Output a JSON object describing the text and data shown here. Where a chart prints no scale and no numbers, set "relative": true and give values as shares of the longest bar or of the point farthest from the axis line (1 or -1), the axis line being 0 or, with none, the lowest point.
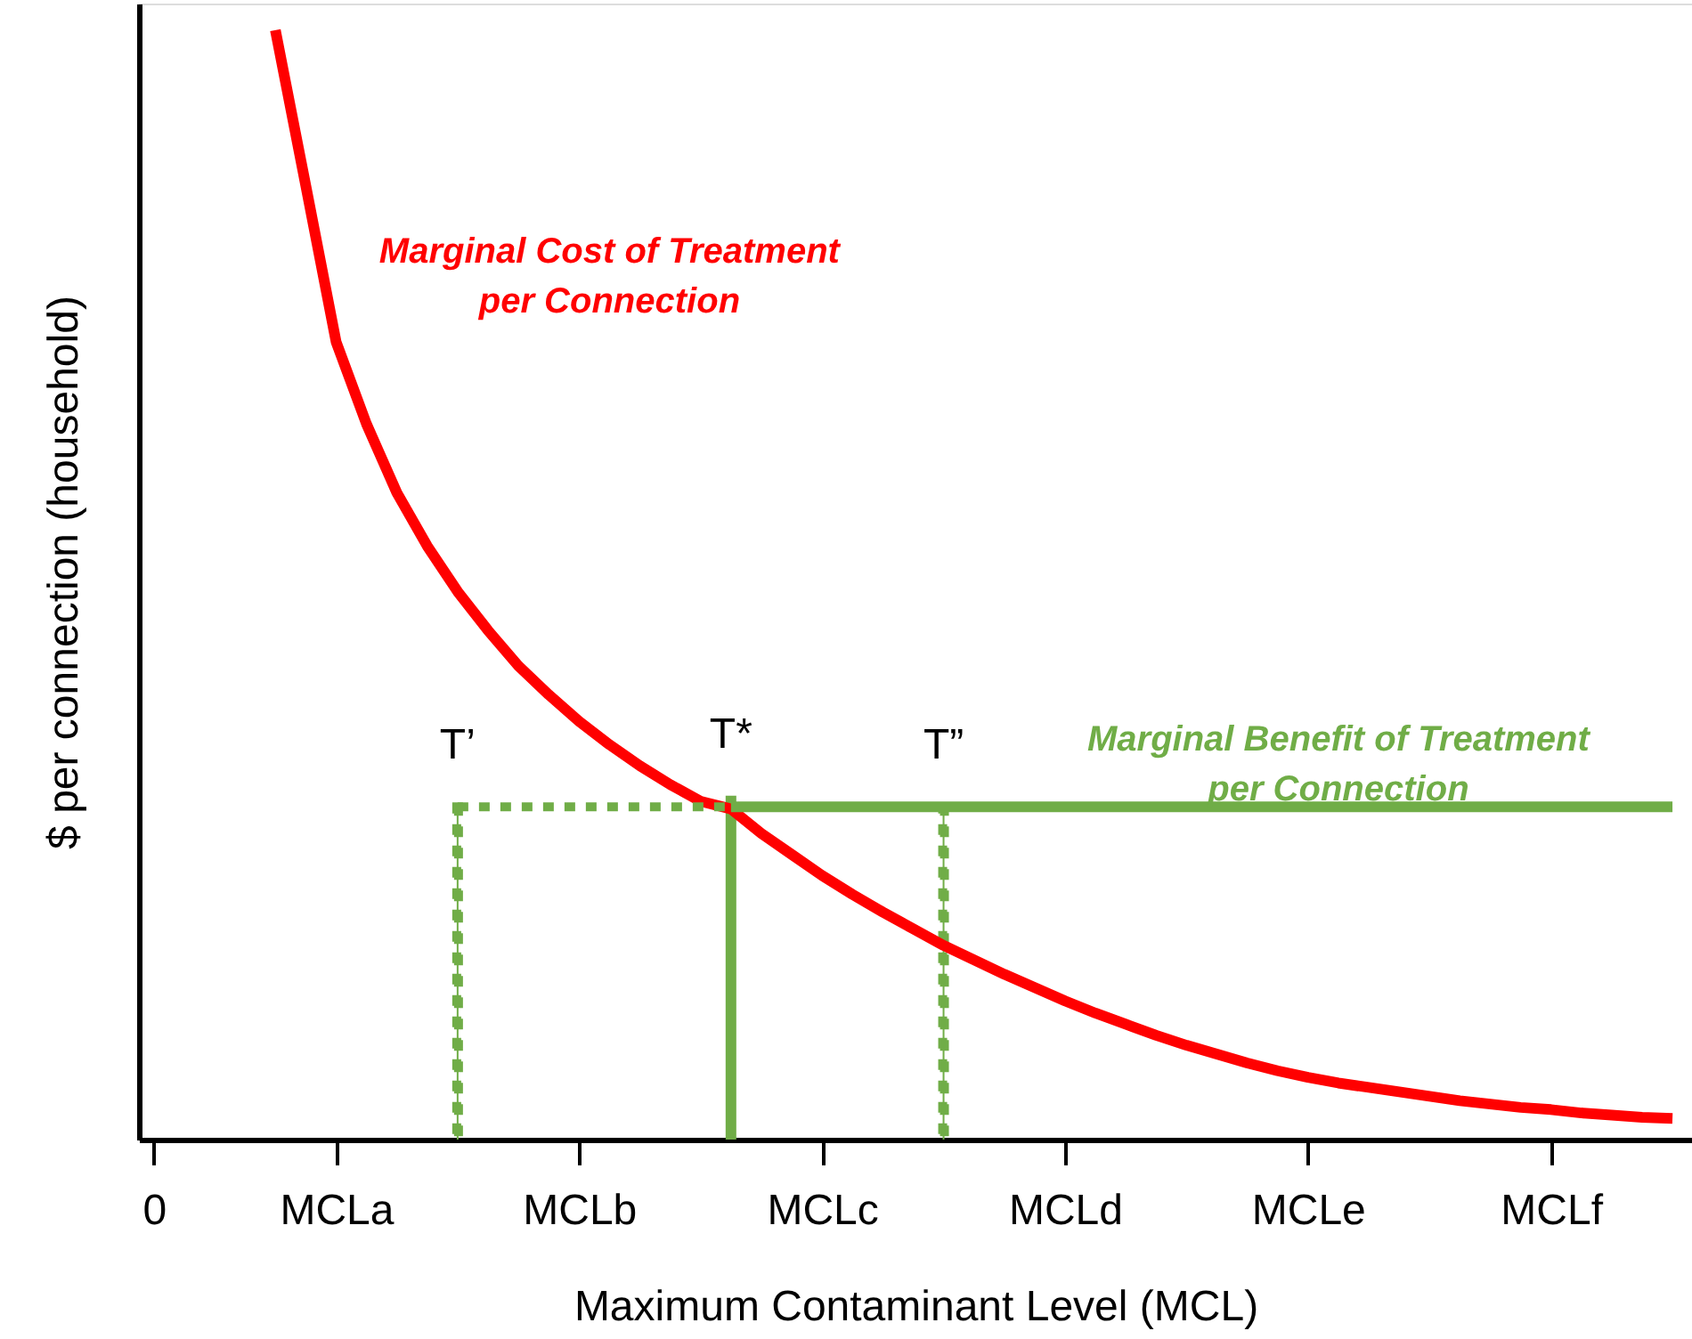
{
  "chart_data": {
    "type": "line",
    "relative": true,
    "xlabel": "Maximum Contaminant Level (MCL)",
    "ylabel": "$ per connection (household)",
    "categories": [
      "0",
      null,
      null,
      null,
      null,
      null,
      "MCLa",
      null,
      null,
      null,
      null,
      null,
      null,
      null,
      "MCLb",
      null,
      null,
      null,
      null,
      null,
      null,
      null,
      "MCLc",
      null,
      null,
      null,
      null,
      null,
      null,
      null,
      "MCLd",
      null,
      null,
      null,
      null,
      null,
      null,
      null,
      "MCLe",
      null,
      null,
      null,
      null,
      null,
      null,
      null,
      "MCLf",
      null,
      null,
      null,
      null
    ],
    "grid": false,
    "series": [
      {
        "name": "Marginal Cost of Treatment per Connection",
        "color": "#ff0000",
        "line_style": "solid",
        "values": [
          null,
          null,
          null,
          null,
          1.0,
          0.86,
          0.719,
          0.645,
          0.583,
          0.535,
          0.494,
          0.459,
          0.427,
          0.401,
          0.377,
          0.356,
          0.337,
          0.32,
          0.305,
          0.298,
          0.276,
          0.257,
          0.238,
          0.221,
          0.205,
          0.19,
          0.175,
          0.162,
          0.149,
          0.137,
          0.125,
          0.114,
          0.104,
          0.094,
          0.085,
          0.077,
          0.069,
          0.062,
          0.056,
          0.051,
          0.047,
          0.043,
          0.039,
          0.035,
          0.032,
          0.029,
          0.027,
          0.024,
          0.022,
          0.02,
          0.019
        ]
      },
      {
        "name": "Marginal Benefit of Treatment per Connection",
        "color": "#70ad47",
        "line_style": "solid",
        "values": [
          null,
          null,
          null,
          null,
          null,
          null,
          null,
          null,
          null,
          null,
          null,
          null,
          null,
          null,
          null,
          null,
          null,
          null,
          null,
          0.3,
          0.3,
          0.3,
          0.3,
          0.3,
          0.3,
          0.3,
          0.3,
          0.3,
          0.3,
          0.3,
          0.3,
          0.3,
          0.3,
          0.3,
          0.3,
          0.3,
          0.3,
          0.3,
          0.3,
          0.3,
          0.3,
          0.3,
          0.3,
          0.3,
          0.3,
          0.3,
          0.3,
          0.3,
          0.3,
          0.3,
          0.3
        ]
      },
      {
        "color": "#70ad47",
        "line_style": "dotted",
        "values": [
          null,
          null,
          null,
          null,
          null,
          null,
          null,
          null,
          null,
          null,
          0.3,
          0.3,
          0.3,
          0.3,
          0.3,
          0.3,
          0.3,
          0.3,
          0.3,
          0.3,
          null,
          null,
          null,
          null,
          null,
          null,
          null,
          null,
          null,
          null,
          null,
          null,
          null,
          null,
          null,
          null,
          null,
          null,
          null,
          null,
          null,
          null,
          null,
          null,
          null,
          null,
          null,
          null,
          null,
          null,
          null
        ]
      },
      {
        "type": "bar",
        "color": "#70ad47",
        "line_style": "dotted",
        "values": [
          null,
          null,
          null,
          null,
          null,
          null,
          null,
          null,
          null,
          null,
          0.3,
          null,
          null,
          null,
          null,
          null,
          null,
          null,
          null,
          null,
          null,
          null,
          null,
          null,
          null,
          null,
          0.3,
          null,
          null,
          null,
          null,
          null,
          null,
          null,
          null,
          null,
          null,
          null,
          null,
          null,
          null,
          null,
          null,
          null,
          null,
          null,
          null,
          null,
          null,
          null,
          null
        ]
      },
      {
        "type": "bar",
        "color": "#70ad47",
        "line_style": "solid",
        "values": [
          null,
          null,
          null,
          null,
          null,
          null,
          null,
          null,
          null,
          null,
          null,
          null,
          null,
          null,
          null,
          null,
          null,
          null,
          null,
          0.31,
          null,
          null,
          null,
          null,
          null,
          null,
          null,
          null,
          null,
          null,
          null,
          null,
          null,
          null,
          null,
          null,
          null,
          null,
          null,
          null,
          null,
          null,
          null,
          null,
          null,
          null,
          null,
          null,
          null,
          null,
          null
        ]
      }
    ],
    "annotations": [
      "T’",
      "T*",
      "T”"
    ]
  }
}
